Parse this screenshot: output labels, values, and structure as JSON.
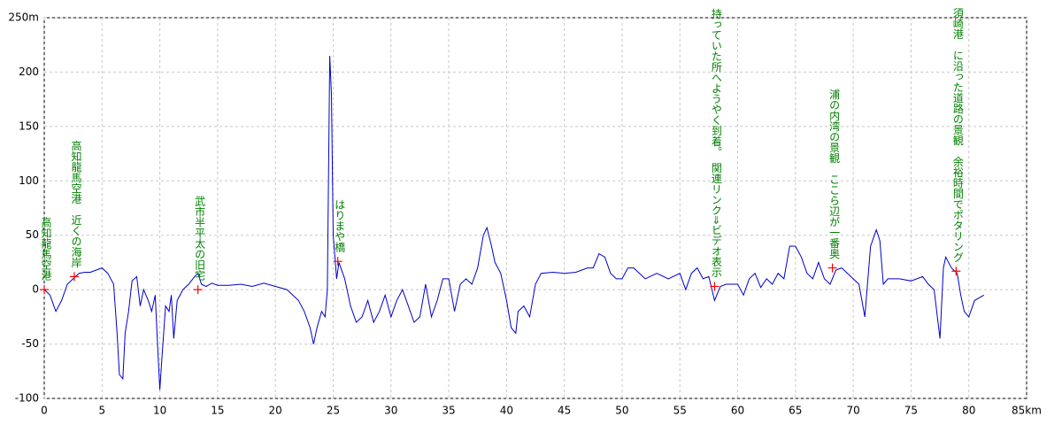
{
  "chart_data": {
    "type": "line",
    "xlim": [
      0,
      85
    ],
    "ylim": [
      -100,
      250
    ],
    "xticks": [
      0,
      5,
      10,
      15,
      20,
      25,
      30,
      35,
      40,
      45,
      50,
      55,
      60,
      65,
      70,
      75,
      80,
      {
        "value": 85,
        "label": "85km"
      }
    ],
    "yticks": [
      -100,
      -50,
      0,
      50,
      100,
      150,
      200,
      {
        "value": 250,
        "label": "250m"
      }
    ],
    "grid": true,
    "x": [
      0,
      0.5,
      1,
      1.5,
      2,
      2.5,
      3,
      3.5,
      4,
      4.5,
      5,
      5.5,
      6,
      6.3,
      6.5,
      6.8,
      7,
      7.3,
      7.6,
      8,
      8.3,
      8.6,
      9,
      9.3,
      9.6,
      9.8,
      10,
      10.2,
      10.5,
      10.8,
      11,
      11.2,
      11.5,
      12,
      12.5,
      13,
      13.3,
      13.6,
      14,
      14.5,
      15,
      16,
      17,
      18,
      19,
      20,
      21,
      21.5,
      22,
      22.5,
      23,
      23.3,
      23.6,
      24,
      24.3,
      24.5,
      24.7,
      24.85,
      25,
      25.3,
      25.5,
      26,
      26.5,
      27,
      27.5,
      28,
      28.5,
      29,
      29.5,
      30,
      30.5,
      31,
      31.5,
      32,
      32.5,
      33,
      33.5,
      34,
      34.5,
      35,
      35.5,
      36,
      36.5,
      37,
      37.5,
      38,
      38.3,
      38.7,
      39,
      39.5,
      40,
      40.4,
      40.8,
      41,
      41.5,
      42,
      42.5,
      43,
      44,
      45,
      46,
      47,
      47.5,
      48,
      48.5,
      49,
      49.5,
      50,
      50.5,
      51,
      52,
      53,
      54,
      55,
      55.5,
      56,
      56.5,
      57,
      57.5,
      58,
      58.5,
      59,
      60,
      60.5,
      61,
      61.5,
      62,
      62.5,
      63,
      63.5,
      64,
      64.5,
      65,
      65.5,
      66,
      66.5,
      67,
      67.5,
      68,
      68.5,
      69,
      69.5,
      70,
      70.5,
      71,
      71.5,
      72,
      72.3,
      72.6,
      73,
      74,
      75,
      76,
      76.5,
      77,
      77.5,
      77.8,
      78,
      78.5,
      79,
      79.3,
      79.6,
      80,
      80.5,
      81.3
    ],
    "series": [
      {
        "color": "#0000cc",
        "values": [
          0,
          -5,
          -20,
          -10,
          5,
          10,
          15,
          16,
          16,
          18,
          20,
          15,
          5,
          -40,
          -78,
          -82,
          -40,
          -20,
          8,
          12,
          -15,
          0,
          -10,
          -20,
          -5,
          -50,
          -92,
          -60,
          -15,
          -20,
          -5,
          -45,
          -10,
          0,
          5,
          12,
          15,
          5,
          3,
          6,
          4,
          4,
          5,
          3,
          6,
          3,
          0,
          -5,
          -10,
          -20,
          -35,
          -50,
          -35,
          -20,
          -25,
          0,
          215,
          180,
          50,
          10,
          25,
          10,
          -15,
          -30,
          -25,
          -10,
          -30,
          -20,
          -5,
          -25,
          -10,
          0,
          -15,
          -30,
          -25,
          5,
          -25,
          -10,
          10,
          10,
          -20,
          5,
          10,
          5,
          20,
          50,
          57,
          40,
          25,
          15,
          -10,
          -35,
          -40,
          -20,
          -15,
          -25,
          5,
          15,
          16,
          15,
          16,
          20,
          20,
          33,
          30,
          15,
          10,
          10,
          20,
          20,
          10,
          15,
          10,
          15,
          0,
          15,
          20,
          10,
          12,
          -10,
          3,
          5,
          5,
          -5,
          10,
          15,
          2,
          10,
          5,
          15,
          10,
          40,
          40,
          30,
          15,
          10,
          25,
          10,
          5,
          18,
          20,
          15,
          10,
          5,
          -25,
          40,
          55,
          45,
          5,
          10,
          10,
          8,
          12,
          5,
          0,
          -45,
          20,
          30,
          20,
          15,
          -5,
          -20,
          -25,
          -10,
          -5
        ]
      }
    ],
    "annotation_color": "#008000",
    "marker_color": "#ff0000",
    "annotations": [
      {
        "text": "高知龍馬空港",
        "x": 0,
        "y": 0
      },
      {
        "text": "高知龍馬空港　近くの海岸",
        "x": 2.6,
        "y": 12
      },
      {
        "text": "武市半平太の旧宅",
        "x": 13.3,
        "y": 0
      },
      {
        "text": "はりまや橋",
        "x": 25.4,
        "y": 26
      },
      {
        "text": "持っていた所へようやく到着。　関連リンク⇒ビデオ表示",
        "x": 58,
        "y": 3
      },
      {
        "text": "浦の内湾の景観　ここら辺が一番奥",
        "x": 68.2,
        "y": 20
      },
      {
        "text": "須崎港　に沿った道路の景観　余裕時間でポタリング",
        "x": 78.9,
        "y": 17
      }
    ]
  }
}
